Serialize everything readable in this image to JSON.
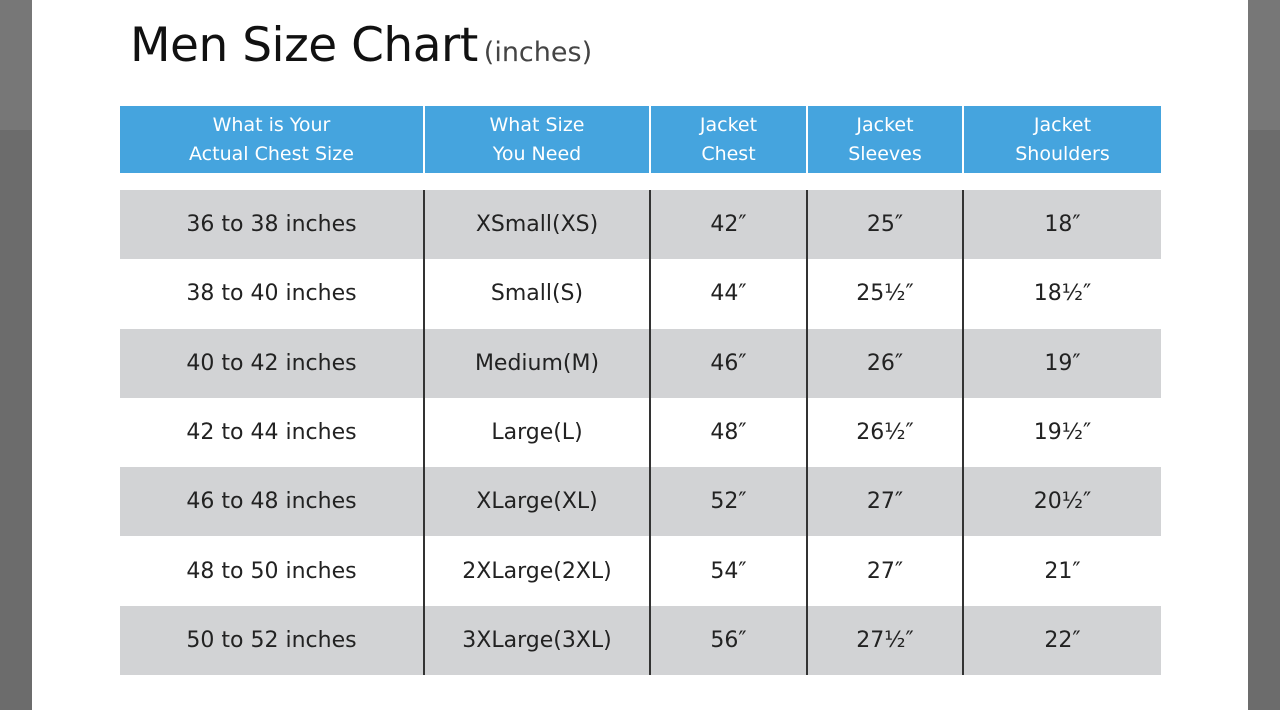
{
  "title": "Men Size Chart",
  "unit": "(inches)",
  "colors": {
    "header": "#45a4de",
    "stripe": "#d2d3d5"
  },
  "headers": [
    "What is Your\nActual Chest Size",
    "What Size\nYou Need",
    "Jacket\nChest",
    "Jacket\nSleeves",
    "Jacket\nShoulders"
  ],
  "rows": [
    [
      "36 to 38 inches",
      "XSmall(XS)",
      "42″",
      "25″",
      "18″"
    ],
    [
      "38 to 40 inches",
      "Small(S)",
      "44″",
      "25½″",
      "18½″"
    ],
    [
      "40 to 42 inches",
      "Medium(M)",
      "46″",
      "26″",
      "19″"
    ],
    [
      "42 to 44 inches",
      "Large(L)",
      "48″",
      "26½″",
      "19½″"
    ],
    [
      "46 to 48 inches",
      "XLarge(XL)",
      "52″",
      "27″",
      "20½″"
    ],
    [
      "48 to 50 inches",
      "2XLarge(2XL)",
      "54″",
      "27″",
      "21″"
    ],
    [
      "50 to 52 inches",
      "3XLarge(3XL)",
      "56″",
      "27½″",
      "22″"
    ]
  ]
}
